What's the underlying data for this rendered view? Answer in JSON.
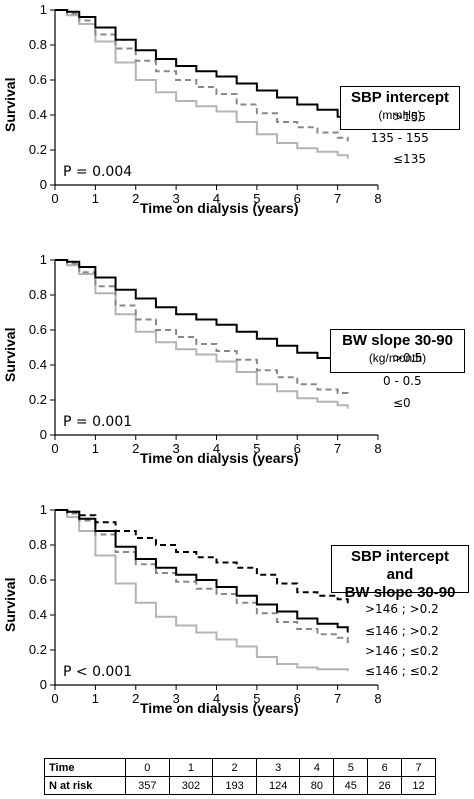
{
  "chart_data": [
    {
      "type": "line",
      "xlabel": "Time on dialysis (years)",
      "ylabel": "Survival",
      "xlim": [
        0,
        8
      ],
      "ylim": [
        0,
        1
      ],
      "xticks": [
        "0",
        "1",
        "2",
        "3",
        "4",
        "5",
        "6",
        "7",
        "8"
      ],
      "yticks": [
        "0",
        "0.2",
        "0.4",
        "0.6",
        "0.8",
        "1"
      ],
      "annotation": "P = 0.004",
      "legend_title": "SBP intercept",
      "legend_unit": "(mmHg)",
      "series": [
        {
          "name": ">155",
          "color": "#000000",
          "dash": "solid",
          "x": [
            0,
            0.3,
            0.6,
            1,
            1.5,
            2,
            2.5,
            3,
            3.5,
            4,
            4.5,
            5,
            5.5,
            6,
            6.5,
            7,
            7.25
          ],
          "y": [
            1,
            0.99,
            0.96,
            0.9,
            0.83,
            0.77,
            0.72,
            0.68,
            0.65,
            0.62,
            0.58,
            0.54,
            0.5,
            0.46,
            0.43,
            0.39,
            0.36
          ]
        },
        {
          "name": "135 - 155",
          "color": "#888888",
          "dash": "dashed",
          "x": [
            0,
            0.3,
            0.6,
            1,
            1.5,
            2,
            2.5,
            3,
            3.5,
            4,
            4.5,
            5,
            5.5,
            6,
            6.5,
            7,
            7.25
          ],
          "y": [
            1,
            0.98,
            0.94,
            0.86,
            0.78,
            0.71,
            0.65,
            0.6,
            0.56,
            0.52,
            0.46,
            0.41,
            0.36,
            0.33,
            0.3,
            0.27,
            0.25
          ]
        },
        {
          "name": "≤135",
          "color": "#b4b4b4",
          "dash": "solid",
          "x": [
            0,
            0.3,
            0.6,
            1,
            1.5,
            2,
            2.5,
            3,
            3.5,
            4,
            4.5,
            5,
            5.5,
            6,
            6.5,
            7,
            7.25
          ],
          "y": [
            1,
            0.97,
            0.92,
            0.82,
            0.7,
            0.6,
            0.53,
            0.48,
            0.45,
            0.42,
            0.36,
            0.29,
            0.24,
            0.21,
            0.19,
            0.17,
            0.15
          ]
        }
      ]
    },
    {
      "type": "line",
      "xlabel": "Time on dialysis (years)",
      "ylabel": "Survival",
      "xlim": [
        0,
        8
      ],
      "ylim": [
        0,
        1
      ],
      "xticks": [
        "0",
        "1",
        "2",
        "3",
        "4",
        "5",
        "6",
        "7",
        "8"
      ],
      "yticks": [
        "0",
        "0.2",
        "0.4",
        "0.6",
        "0.8",
        "1"
      ],
      "annotation": "P = 0.001",
      "legend_title": "BW slope 30-90",
      "legend_unit": "(kg/month)",
      "series": [
        {
          "name": ">0.5",
          "color": "#000000",
          "dash": "solid",
          "x": [
            0,
            0.3,
            0.6,
            1,
            1.5,
            2,
            2.5,
            3,
            3.5,
            4,
            4.5,
            5,
            5.5,
            6,
            6.5,
            7,
            7.25
          ],
          "y": [
            1,
            0.99,
            0.96,
            0.9,
            0.83,
            0.78,
            0.73,
            0.69,
            0.66,
            0.63,
            0.59,
            0.55,
            0.51,
            0.47,
            0.44,
            0.41,
            0.38
          ]
        },
        {
          "name": "0 - 0.5",
          "color": "#888888",
          "dash": "dashed",
          "x": [
            0,
            0.3,
            0.6,
            1,
            1.5,
            2,
            2.5,
            3,
            3.5,
            4,
            4.5,
            5,
            5.5,
            6,
            6.5,
            7,
            7.25
          ],
          "y": [
            1,
            0.98,
            0.93,
            0.85,
            0.74,
            0.66,
            0.6,
            0.56,
            0.52,
            0.48,
            0.43,
            0.37,
            0.33,
            0.29,
            0.26,
            0.24,
            0.22
          ]
        },
        {
          "name": "≤0",
          "color": "#b4b4b4",
          "dash": "solid",
          "x": [
            0,
            0.3,
            0.6,
            1,
            1.5,
            2,
            2.5,
            3,
            3.5,
            4,
            4.5,
            5,
            5.5,
            6,
            6.5,
            7,
            7.25
          ],
          "y": [
            1,
            0.97,
            0.92,
            0.81,
            0.69,
            0.59,
            0.53,
            0.49,
            0.46,
            0.42,
            0.36,
            0.29,
            0.25,
            0.21,
            0.19,
            0.17,
            0.15
          ]
        }
      ]
    },
    {
      "type": "line",
      "xlabel": "Time on dialysis (years)",
      "ylabel": "Survival",
      "xlim": [
        0,
        8
      ],
      "ylim": [
        0,
        1
      ],
      "xticks": [
        "0",
        "1",
        "2",
        "3",
        "4",
        "5",
        "6",
        "7",
        "8"
      ],
      "yticks": [
        "0",
        "0.2",
        "0.4",
        "0.6",
        "0.8",
        "1"
      ],
      "annotation": "P < 0.001",
      "legend_title": "SBP intercept and",
      "legend_title_2": "BW slope 30-90",
      "series": [
        {
          "name": ">146 ; >0.2",
          "color": "#000000",
          "dash": "dashed",
          "x": [
            0,
            0.3,
            0.6,
            1,
            1.5,
            2,
            2.5,
            3,
            3.5,
            4,
            4.5,
            5,
            5.5,
            6,
            6.5,
            7,
            7.25
          ],
          "y": [
            1,
            0.99,
            0.97,
            0.93,
            0.88,
            0.84,
            0.8,
            0.76,
            0.73,
            0.7,
            0.67,
            0.63,
            0.58,
            0.53,
            0.51,
            0.49,
            0.46
          ]
        },
        {
          "name": "≤146 ; >0.2",
          "color": "#000000",
          "dash": "solid",
          "x": [
            0,
            0.3,
            0.6,
            1,
            1.5,
            2,
            2.5,
            3,
            3.5,
            4,
            4.5,
            5,
            5.5,
            6,
            6.5,
            7,
            7.25
          ],
          "y": [
            1,
            0.99,
            0.95,
            0.88,
            0.79,
            0.72,
            0.67,
            0.63,
            0.6,
            0.56,
            0.51,
            0.46,
            0.42,
            0.38,
            0.35,
            0.33,
            0.3
          ]
        },
        {
          "name": ">146 ; ≤0.2",
          "color": "#888888",
          "dash": "dashed",
          "x": [
            0,
            0.3,
            0.6,
            1,
            1.5,
            2,
            2.5,
            3,
            3.5,
            4,
            4.5,
            5,
            5.5,
            6,
            6.5,
            7,
            7.25
          ],
          "y": [
            1,
            0.98,
            0.94,
            0.86,
            0.76,
            0.69,
            0.64,
            0.59,
            0.55,
            0.52,
            0.47,
            0.41,
            0.36,
            0.32,
            0.29,
            0.27,
            0.24
          ]
        },
        {
          "name": "≤146 ; ≤0.2",
          "color": "#b4b4b4",
          "dash": "solid",
          "x": [
            0,
            0.3,
            0.6,
            1,
            1.5,
            2,
            2.5,
            3,
            3.5,
            4,
            4.5,
            5,
            5.5,
            6,
            6.5,
            7,
            7.25
          ],
          "y": [
            1,
            0.96,
            0.88,
            0.74,
            0.58,
            0.47,
            0.39,
            0.34,
            0.3,
            0.26,
            0.22,
            0.16,
            0.12,
            0.1,
            0.09,
            0.09,
            0.08
          ]
        }
      ]
    }
  ],
  "risk_table": {
    "time_label": "Time",
    "risk_label": "N at risk",
    "times": [
      "0",
      "1",
      "2",
      "3",
      "4",
      "5",
      "6",
      "7"
    ],
    "counts": [
      "357",
      "302",
      "193",
      "124",
      "80",
      "45",
      "26",
      "12"
    ]
  }
}
